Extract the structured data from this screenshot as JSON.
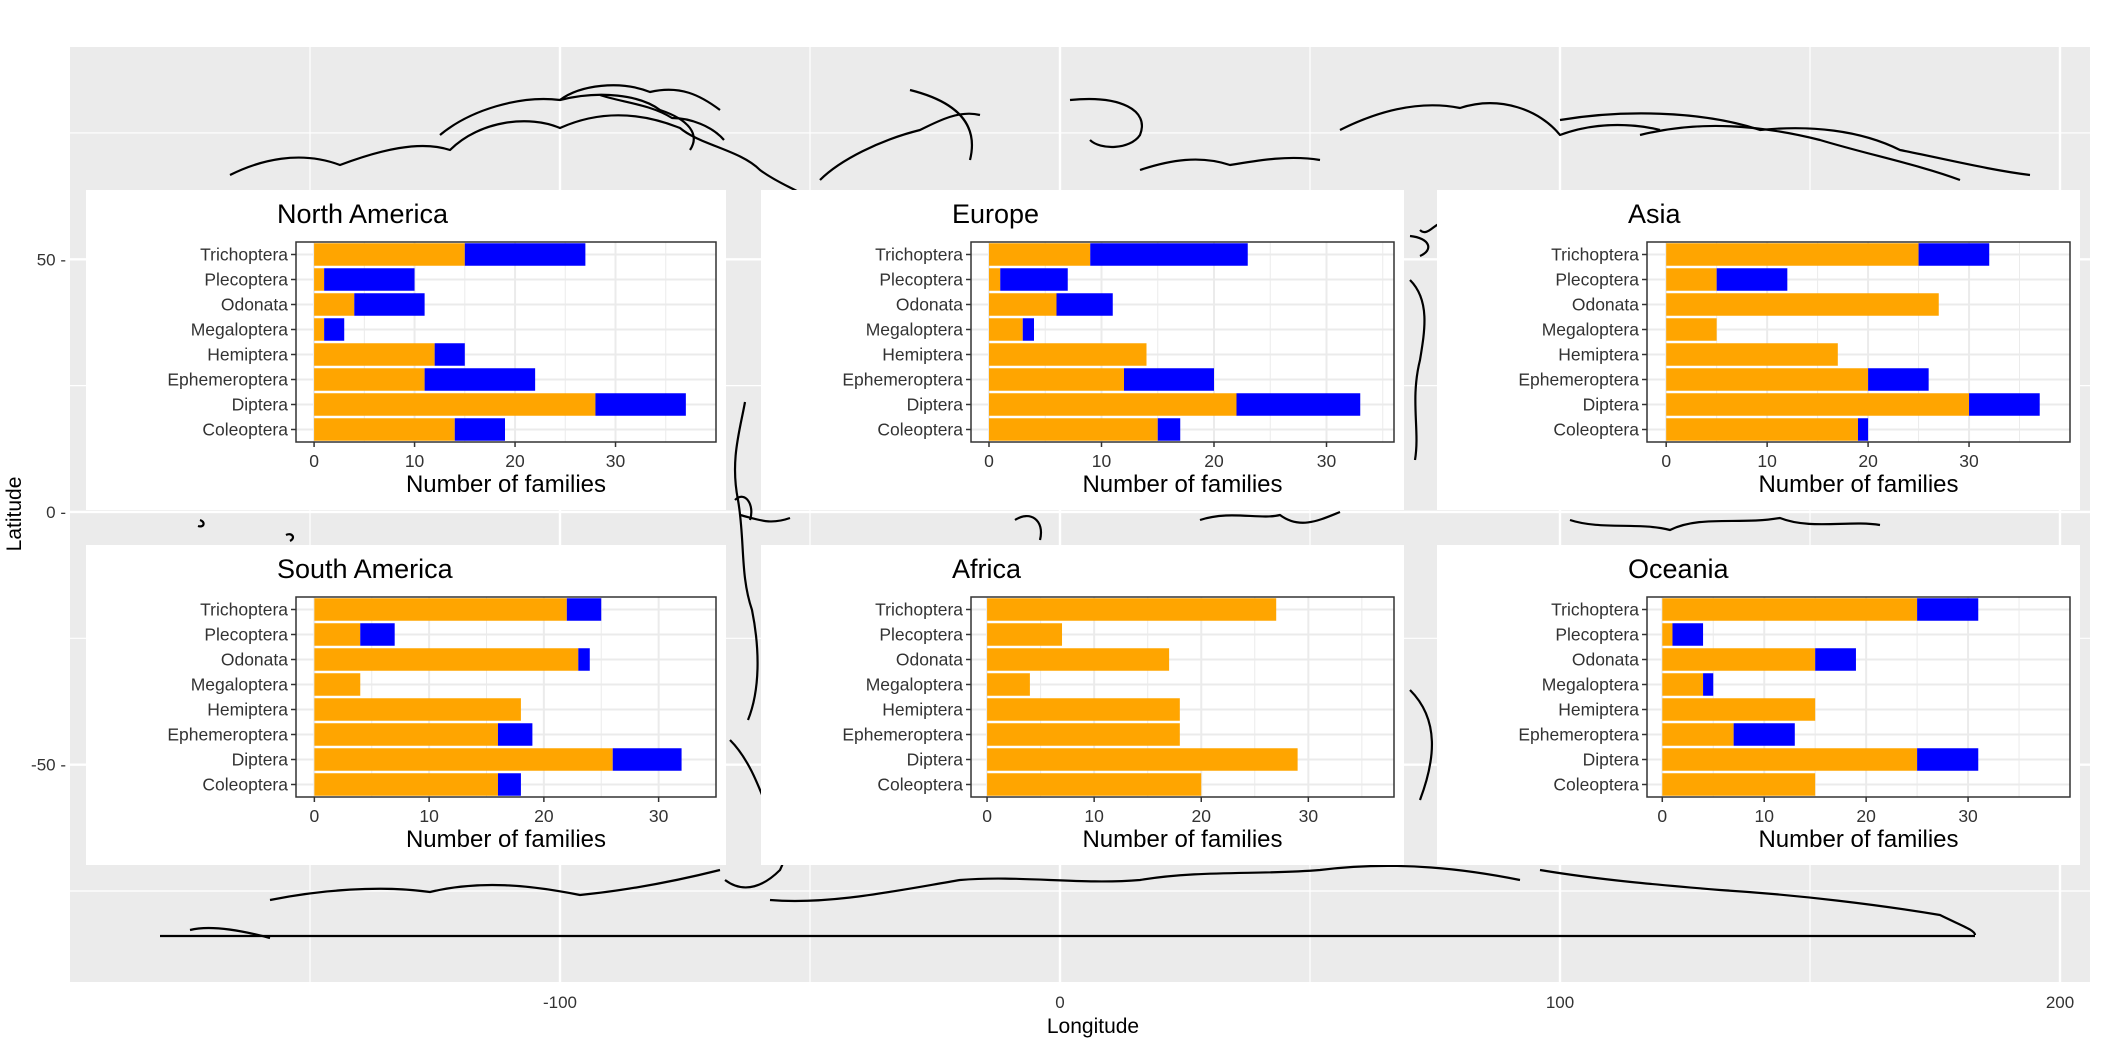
{
  "main_axes": {
    "xlabel": "Longitude",
    "ylabel": "Latitude",
    "x_ticks": [
      -100,
      0,
      100,
      200
    ],
    "x_tick_labels": [
      "-100",
      "0",
      "100",
      "200"
    ],
    "y_ticks": [
      50,
      0,
      -50
    ],
    "y_tick_labels": [
      "50 -",
      "0 -",
      "-50 -"
    ],
    "xlim": [
      -198,
      206
    ],
    "ylim": [
      -93,
      92
    ],
    "panel_bg": "#ebebeb",
    "grid_color": "#ffffff"
  },
  "colors": {
    "primary": "#ffa500",
    "secondary": "#0000ff"
  },
  "chart_data": [
    {
      "type": "bar",
      "title": "North America",
      "xlabel": "Number of families",
      "categories": [
        "Trichoptera",
        "Plecoptera",
        "Odonata",
        "Megaloptera",
        "Hemiptera",
        "Ephemeroptera",
        "Diptera",
        "Coleoptera"
      ],
      "series": [
        {
          "color": "#ffa500",
          "values": [
            15,
            1,
            4,
            1,
            12,
            11,
            28,
            14
          ]
        },
        {
          "color": "#0000ff",
          "values": [
            12,
            9,
            7,
            2,
            3,
            11,
            9,
            5
          ]
        }
      ],
      "x_ticks": [
        0,
        10,
        20,
        30
      ],
      "xlim": [
        -1.8,
        40
      ]
    },
    {
      "type": "bar",
      "title": "Europe",
      "xlabel": "Number of families",
      "categories": [
        "Trichoptera",
        "Plecoptera",
        "Odonata",
        "Megaloptera",
        "Hemiptera",
        "Ephemeroptera",
        "Diptera",
        "Coleoptera"
      ],
      "series": [
        {
          "color": "#ffa500",
          "values": [
            9,
            1,
            6,
            3,
            14,
            12,
            22,
            15
          ]
        },
        {
          "color": "#0000ff",
          "values": [
            14,
            6,
            5,
            1,
            0,
            8,
            11,
            2
          ]
        }
      ],
      "x_ticks": [
        0,
        10,
        20,
        30
      ],
      "xlim": [
        -1.6,
        36
      ]
    },
    {
      "type": "bar",
      "title": "Asia",
      "xlabel": "Number of families",
      "categories": [
        "Trichoptera",
        "Plecoptera",
        "Odonata",
        "Megaloptera",
        "Hemiptera",
        "Ephemeroptera",
        "Diptera",
        "Coleoptera"
      ],
      "series": [
        {
          "color": "#ffa500",
          "values": [
            25,
            5,
            27,
            5,
            17,
            20,
            30,
            19
          ]
        },
        {
          "color": "#0000ff",
          "values": [
            7,
            7,
            0,
            0,
            0,
            6,
            7,
            1
          ]
        }
      ],
      "x_ticks": [
        0,
        10,
        20,
        30
      ],
      "xlim": [
        -1.9,
        40
      ]
    },
    {
      "type": "bar",
      "title": "South America",
      "xlabel": "Number of families",
      "categories": [
        "Trichoptera",
        "Plecoptera",
        "Odonata",
        "Megaloptera",
        "Hemiptera",
        "Ephemeroptera",
        "Diptera",
        "Coleoptera"
      ],
      "series": [
        {
          "color": "#ffa500",
          "values": [
            22,
            4,
            23,
            4,
            18,
            16,
            26,
            16
          ]
        },
        {
          "color": "#0000ff",
          "values": [
            3,
            3,
            1,
            0,
            0,
            3,
            6,
            2
          ]
        }
      ],
      "x_ticks": [
        0,
        10,
        20,
        30
      ],
      "xlim": [
        -1.6,
        35
      ]
    },
    {
      "type": "bar",
      "title": "Africa",
      "xlabel": "Number of families",
      "categories": [
        "Trichoptera",
        "Plecoptera",
        "Odonata",
        "Megaloptera",
        "Hemiptera",
        "Ephemeroptera",
        "Diptera",
        "Coleoptera"
      ],
      "series": [
        {
          "color": "#ffa500",
          "values": [
            27,
            7,
            17,
            4,
            18,
            18,
            29,
            20
          ]
        },
        {
          "color": "#0000ff",
          "values": [
            0,
            0,
            0,
            0,
            0,
            0,
            0,
            0
          ]
        }
      ],
      "x_ticks": [
        0,
        10,
        20,
        30
      ],
      "xlim": [
        -1.5,
        38
      ]
    },
    {
      "type": "bar",
      "title": "Oceania",
      "xlabel": "Number of families",
      "categories": [
        "Trichoptera",
        "Plecoptera",
        "Odonata",
        "Megaloptera",
        "Hemiptera",
        "Ephemeroptera",
        "Diptera",
        "Coleoptera"
      ],
      "series": [
        {
          "color": "#ffa500",
          "values": [
            25,
            1,
            15,
            4,
            15,
            7,
            25,
            15
          ]
        },
        {
          "color": "#0000ff",
          "values": [
            6,
            3,
            4,
            1,
            0,
            6,
            6,
            0
          ]
        }
      ],
      "x_ticks": [
        0,
        10,
        20,
        30
      ],
      "xlim": [
        -1.5,
        40
      ]
    }
  ]
}
